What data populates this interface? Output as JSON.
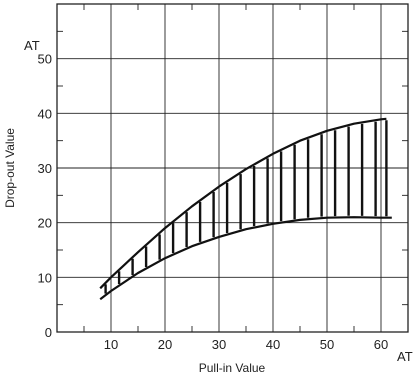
{
  "chart_data": {
    "type": "area",
    "title": "",
    "xlabel": "Pull-in Value",
    "ylabel": "Drop-out Value",
    "x_unit": "AT",
    "y_unit": "AT",
    "xlim": [
      0,
      65
    ],
    "ylim": [
      0,
      60
    ],
    "x_ticks": [
      10,
      20,
      30,
      40,
      50,
      60
    ],
    "y_ticks": [
      0,
      10,
      20,
      30,
      40,
      50
    ],
    "grid": true,
    "series": [
      {
        "points": [
          [
            8,
            8
          ],
          [
            10,
            10
          ],
          [
            15,
            14.6
          ],
          [
            20,
            19
          ],
          [
            25,
            23
          ],
          [
            30,
            26.6
          ],
          [
            35,
            29.8
          ],
          [
            40,
            32.6
          ],
          [
            45,
            35
          ],
          [
            50,
            36.8
          ],
          [
            55,
            38.1
          ],
          [
            60,
            38.9
          ],
          [
            61,
            39
          ]
        ]
      },
      {
        "points": [
          [
            8,
            6
          ],
          [
            10,
            7.5
          ],
          [
            15,
            10.8
          ],
          [
            20,
            13.5
          ],
          [
            25,
            15.7
          ],
          [
            30,
            17.4
          ],
          [
            35,
            18.8
          ],
          [
            40,
            19.8
          ],
          [
            45,
            20.5
          ],
          [
            50,
            20.9
          ],
          [
            55,
            21
          ],
          [
            60,
            20.9
          ],
          [
            62,
            20.9
          ]
        ]
      }
    ],
    "hatch_x": [
      9,
      11.5,
      14,
      16.5,
      19,
      21.5,
      24,
      26.5,
      29,
      31.5,
      34,
      36.5,
      39,
      41.5,
      44,
      46.5,
      49,
      51.5,
      54,
      56.5,
      59,
      61
    ]
  }
}
